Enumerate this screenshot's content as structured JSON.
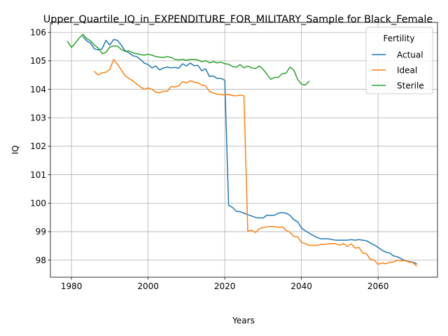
{
  "chart_data": {
    "type": "line",
    "title": "Upper_Quartile_IQ_in_EXPENDITURE_FOR_MILITARY_Sample for Black_Female",
    "xlabel": "Years",
    "ylabel": "IQ",
    "xlim": [
      1974.5,
      2075.5
    ],
    "ylim": [
      97.4,
      106.35
    ],
    "xticks": [
      1980,
      2000,
      2020,
      2040,
      2060
    ],
    "yticks": [
      98,
      99,
      100,
      101,
      102,
      103,
      104,
      105,
      106
    ],
    "grid": true,
    "legend": {
      "title": "Fertility",
      "placement": "top-right"
    },
    "series": [
      {
        "name": "Actual",
        "color": "#1f77b4",
        "points": [
          [
            1983,
            105.85
          ],
          [
            1984,
            105.7
          ],
          [
            1985,
            105.62
          ],
          [
            1986,
            105.42
          ],
          [
            1987,
            105.38
          ],
          [
            1988,
            105.42
          ],
          [
            1989,
            105.72
          ],
          [
            1990,
            105.55
          ],
          [
            1991,
            105.75
          ],
          [
            1992,
            105.72
          ],
          [
            1993,
            105.55
          ],
          [
            1994,
            105.35
          ],
          [
            1995,
            105.28
          ],
          [
            1996,
            105.18
          ],
          [
            1997,
            105.15
          ],
          [
            1998,
            105.05
          ],
          [
            1999,
            104.92
          ],
          [
            2000,
            104.87
          ],
          [
            2001,
            104.75
          ],
          [
            2002,
            104.82
          ],
          [
            2003,
            104.68
          ],
          [
            2004,
            104.75
          ],
          [
            2005,
            104.78
          ],
          [
            2006,
            104.75
          ],
          [
            2007,
            104.77
          ],
          [
            2008,
            104.74
          ],
          [
            2009,
            104.9
          ],
          [
            2010,
            104.82
          ],
          [
            2011,
            104.92
          ],
          [
            2012,
            104.83
          ],
          [
            2013,
            104.84
          ],
          [
            2014,
            104.65
          ],
          [
            2015,
            104.72
          ],
          [
            2016,
            104.45
          ],
          [
            2017,
            104.47
          ],
          [
            2018,
            104.38
          ],
          [
            2019,
            104.38
          ],
          [
            2020,
            104.32
          ],
          [
            2021,
            99.93
          ],
          [
            2022,
            99.85
          ],
          [
            2023,
            99.72
          ],
          [
            2024,
            99.7
          ],
          [
            2025,
            99.65
          ],
          [
            2026,
            99.6
          ],
          [
            2027,
            99.55
          ],
          [
            2028,
            99.5
          ],
          [
            2029,
            99.48
          ],
          [
            2030,
            99.48
          ],
          [
            2031,
            99.58
          ],
          [
            2032,
            99.57
          ],
          [
            2033,
            99.58
          ],
          [
            2034,
            99.65
          ],
          [
            2035,
            99.67
          ],
          [
            2036,
            99.65
          ],
          [
            2037,
            99.57
          ],
          [
            2038,
            99.42
          ],
          [
            2039,
            99.35
          ],
          [
            2040,
            99.13
          ],
          [
            2041,
            99.03
          ],
          [
            2042,
            98.95
          ],
          [
            2043,
            98.87
          ],
          [
            2044,
            98.8
          ],
          [
            2045,
            98.75
          ],
          [
            2046,
            98.75
          ],
          [
            2047,
            98.75
          ],
          [
            2048,
            98.72
          ],
          [
            2049,
            98.7
          ],
          [
            2050,
            98.7
          ],
          [
            2051,
            98.7
          ],
          [
            2052,
            98.7
          ],
          [
            2053,
            98.72
          ],
          [
            2054,
            98.7
          ],
          [
            2055,
            98.72
          ],
          [
            2056,
            98.7
          ],
          [
            2057,
            98.68
          ],
          [
            2058,
            98.6
          ],
          [
            2059,
            98.53
          ],
          [
            2060,
            98.45
          ],
          [
            2061,
            98.35
          ],
          [
            2062,
            98.28
          ],
          [
            2063,
            98.25
          ],
          [
            2064,
            98.15
          ],
          [
            2065,
            98.12
          ],
          [
            2066,
            98.05
          ],
          [
            2067,
            97.98
          ],
          [
            2068,
            97.95
          ],
          [
            2069,
            97.93
          ],
          [
            2070,
            97.87
          ]
        ]
      },
      {
        "name": "Ideal",
        "color": "#ff7f0e",
        "points": [
          [
            1986,
            104.62
          ],
          [
            1987,
            104.5
          ],
          [
            1988,
            104.58
          ],
          [
            1989,
            104.6
          ],
          [
            1990,
            104.7
          ],
          [
            1991,
            105.05
          ],
          [
            1992,
            104.88
          ],
          [
            1993,
            104.68
          ],
          [
            1994,
            104.48
          ],
          [
            1995,
            104.38
          ],
          [
            1996,
            104.3
          ],
          [
            1997,
            104.18
          ],
          [
            1998,
            104.08
          ],
          [
            1999,
            104.0
          ],
          [
            2000,
            104.05
          ],
          [
            2001,
            104.0
          ],
          [
            2002,
            103.9
          ],
          [
            2003,
            103.88
          ],
          [
            2004,
            103.93
          ],
          [
            2005,
            103.93
          ],
          [
            2006,
            104.1
          ],
          [
            2007,
            104.08
          ],
          [
            2008,
            104.12
          ],
          [
            2009,
            104.27
          ],
          [
            2010,
            104.22
          ],
          [
            2011,
            104.3
          ],
          [
            2012,
            104.25
          ],
          [
            2013,
            104.23
          ],
          [
            2014,
            104.15
          ],
          [
            2015,
            104.12
          ],
          [
            2016,
            103.93
          ],
          [
            2017,
            103.87
          ],
          [
            2018,
            103.83
          ],
          [
            2019,
            103.82
          ],
          [
            2020,
            103.8
          ],
          [
            2021,
            103.82
          ],
          [
            2022,
            103.78
          ],
          [
            2023,
            103.77
          ],
          [
            2024,
            103.8
          ],
          [
            2025,
            103.77
          ],
          [
            2026,
            99.02
          ],
          [
            2027,
            99.05
          ],
          [
            2028,
            98.97
          ],
          [
            2029,
            99.1
          ],
          [
            2030,
            99.15
          ],
          [
            2031,
            99.17
          ],
          [
            2032,
            99.18
          ],
          [
            2033,
            99.18
          ],
          [
            2034,
            99.15
          ],
          [
            2035,
            99.17
          ],
          [
            2036,
            99.05
          ],
          [
            2037,
            98.98
          ],
          [
            2038,
            98.83
          ],
          [
            2039,
            98.82
          ],
          [
            2040,
            98.62
          ],
          [
            2041,
            98.58
          ],
          [
            2042,
            98.52
          ],
          [
            2043,
            98.52
          ],
          [
            2044,
            98.52
          ],
          [
            2045,
            98.55
          ],
          [
            2046,
            98.55
          ],
          [
            2047,
            98.57
          ],
          [
            2048,
            98.58
          ],
          [
            2049,
            98.57
          ],
          [
            2050,
            98.53
          ],
          [
            2051,
            98.58
          ],
          [
            2052,
            98.48
          ],
          [
            2053,
            98.57
          ],
          [
            2054,
            98.42
          ],
          [
            2055,
            98.45
          ],
          [
            2056,
            98.25
          ],
          [
            2057,
            98.22
          ],
          [
            2058,
            98.02
          ],
          [
            2059,
            98.0
          ],
          [
            2060,
            97.85
          ],
          [
            2061,
            97.9
          ],
          [
            2062,
            97.87
          ],
          [
            2063,
            97.93
          ],
          [
            2064,
            97.93
          ],
          [
            2065,
            98.0
          ],
          [
            2066,
            97.97
          ],
          [
            2067,
            98.0
          ],
          [
            2068,
            97.93
          ],
          [
            2069,
            97.92
          ],
          [
            2070,
            97.8
          ]
        ]
      },
      {
        "name": "Sterile",
        "color": "#2ca02c",
        "points": [
          [
            1979,
            105.68
          ],
          [
            1980,
            105.47
          ],
          [
            1981,
            105.62
          ],
          [
            1982,
            105.8
          ],
          [
            1983,
            105.93
          ],
          [
            1984,
            105.78
          ],
          [
            1985,
            105.7
          ],
          [
            1986,
            105.55
          ],
          [
            1987,
            105.45
          ],
          [
            1988,
            105.25
          ],
          [
            1989,
            105.3
          ],
          [
            1990,
            105.48
          ],
          [
            1991,
            105.52
          ],
          [
            1992,
            105.52
          ],
          [
            1993,
            105.4
          ],
          [
            1994,
            105.33
          ],
          [
            1995,
            105.35
          ],
          [
            1996,
            105.28
          ],
          [
            1997,
            105.25
          ],
          [
            1998,
            105.22
          ],
          [
            1999,
            105.2
          ],
          [
            2000,
            105.23
          ],
          [
            2001,
            105.2
          ],
          [
            2002,
            105.15
          ],
          [
            2003,
            105.13
          ],
          [
            2004,
            105.12
          ],
          [
            2005,
            105.15
          ],
          [
            2006,
            105.12
          ],
          [
            2007,
            105.05
          ],
          [
            2008,
            105.03
          ],
          [
            2009,
            105.05
          ],
          [
            2010,
            105.02
          ],
          [
            2011,
            105.05
          ],
          [
            2012,
            105.05
          ],
          [
            2013,
            105.03
          ],
          [
            2014,
            104.97
          ],
          [
            2015,
            105.01
          ],
          [
            2016,
            104.93
          ],
          [
            2017,
            104.97
          ],
          [
            2018,
            104.93
          ],
          [
            2019,
            104.95
          ],
          [
            2020,
            104.9
          ],
          [
            2021,
            104.88
          ],
          [
            2022,
            104.8
          ],
          [
            2023,
            104.78
          ],
          [
            2024,
            104.87
          ],
          [
            2025,
            104.75
          ],
          [
            2026,
            104.82
          ],
          [
            2027,
            104.75
          ],
          [
            2028,
            104.73
          ],
          [
            2029,
            104.82
          ],
          [
            2030,
            104.7
          ],
          [
            2031,
            104.53
          ],
          [
            2032,
            104.35
          ],
          [
            2033,
            104.42
          ],
          [
            2034,
            104.42
          ],
          [
            2035,
            104.55
          ],
          [
            2036,
            104.57
          ],
          [
            2037,
            104.78
          ],
          [
            2038,
            104.68
          ],
          [
            2039,
            104.35
          ],
          [
            2040,
            104.18
          ],
          [
            2041,
            104.15
          ],
          [
            2042,
            104.28
          ]
        ]
      }
    ]
  }
}
